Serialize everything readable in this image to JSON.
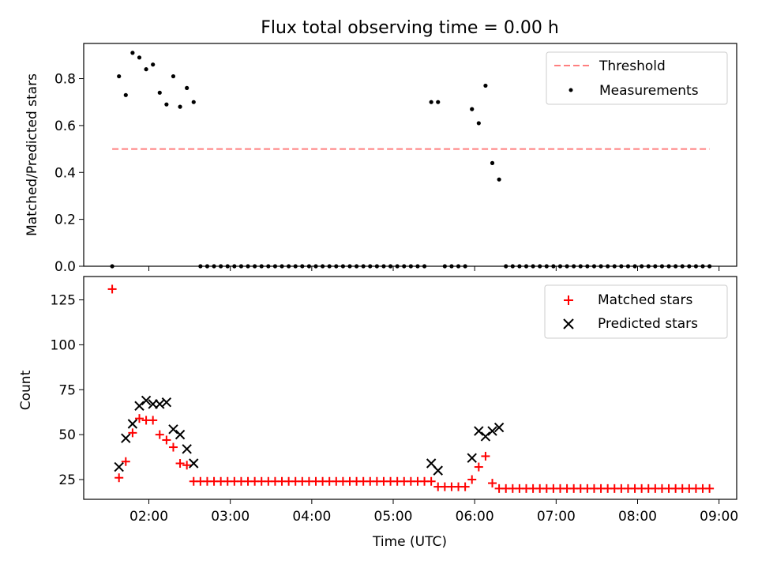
{
  "title": "Flux total observing time = 0.00 h",
  "xlabel": "Time (UTC)",
  "chart_data": [
    {
      "type": "scatter",
      "ylabel": "Matched/Predicted stars",
      "xlim": [
        "01:12",
        "09:13"
      ],
      "ylim": [
        0,
        0.95
      ],
      "yticks": [
        0.0,
        0.2,
        0.4,
        0.6,
        0.8
      ],
      "ytick_labels": [
        "0.0",
        "0.2",
        "0.4",
        "0.6",
        "0.8"
      ],
      "xticks": [
        "02:00",
        "03:00",
        "04:00",
        "05:00",
        "06:00",
        "07:00",
        "08:00",
        "09:00"
      ],
      "legend_position": "top-right",
      "threshold": {
        "name": "Threshold",
        "value": 0.5,
        "x_start": "01:33",
        "x_end": "08:53",
        "color": "#ff7f7f",
        "style": "dashed"
      },
      "series": [
        {
          "name": "Measurements",
          "color": "#000000",
          "points": [
            [
              "01:33",
              0.0
            ],
            [
              "01:38",
              0.81
            ],
            [
              "01:43",
              0.73
            ],
            [
              "01:48",
              0.91
            ],
            [
              "01:53",
              0.89
            ],
            [
              "01:58",
              0.84
            ],
            [
              "02:03",
              0.86
            ],
            [
              "02:08",
              0.74
            ],
            [
              "02:13",
              0.69
            ],
            [
              "02:18",
              0.81
            ],
            [
              "02:23",
              0.68
            ],
            [
              "02:28",
              0.76
            ],
            [
              "02:33",
              0.7
            ],
            [
              "02:38",
              0.0
            ],
            [
              "02:43",
              0.0
            ],
            [
              "02:48",
              0.0
            ],
            [
              "02:53",
              0.0
            ],
            [
              "02:58",
              0.0
            ],
            [
              "03:03",
              0.0
            ],
            [
              "03:08",
              0.0
            ],
            [
              "03:13",
              0.0
            ],
            [
              "03:18",
              0.0
            ],
            [
              "03:23",
              0.0
            ],
            [
              "03:28",
              0.0
            ],
            [
              "03:33",
              0.0
            ],
            [
              "03:38",
              0.0
            ],
            [
              "03:43",
              0.0
            ],
            [
              "03:48",
              0.0
            ],
            [
              "03:53",
              0.0
            ],
            [
              "03:58",
              0.0
            ],
            [
              "04:03",
              0.0
            ],
            [
              "04:08",
              0.0
            ],
            [
              "04:13",
              0.0
            ],
            [
              "04:18",
              0.0
            ],
            [
              "04:23",
              0.0
            ],
            [
              "04:28",
              0.0
            ],
            [
              "04:33",
              0.0
            ],
            [
              "04:38",
              0.0
            ],
            [
              "04:43",
              0.0
            ],
            [
              "04:48",
              0.0
            ],
            [
              "04:53",
              0.0
            ],
            [
              "04:58",
              0.0
            ],
            [
              "05:03",
              0.0
            ],
            [
              "05:08",
              0.0
            ],
            [
              "05:13",
              0.0
            ],
            [
              "05:18",
              0.0
            ],
            [
              "05:23",
              0.0
            ],
            [
              "05:28",
              0.7
            ],
            [
              "05:33",
              0.7
            ],
            [
              "05:38",
              0.0
            ],
            [
              "05:43",
              0.0
            ],
            [
              "05:48",
              0.0
            ],
            [
              "05:53",
              0.0
            ],
            [
              "05:58",
              0.67
            ],
            [
              "06:03",
              0.61
            ],
            [
              "06:08",
              0.77
            ],
            [
              "06:13",
              0.44
            ],
            [
              "06:18",
              0.37
            ],
            [
              "06:23",
              0.0
            ],
            [
              "06:28",
              0.0
            ],
            [
              "06:33",
              0.0
            ],
            [
              "06:38",
              0.0
            ],
            [
              "06:43",
              0.0
            ],
            [
              "06:48",
              0.0
            ],
            [
              "06:53",
              0.0
            ],
            [
              "06:58",
              0.0
            ],
            [
              "07:03",
              0.0
            ],
            [
              "07:08",
              0.0
            ],
            [
              "07:13",
              0.0
            ],
            [
              "07:18",
              0.0
            ],
            [
              "07:23",
              0.0
            ],
            [
              "07:28",
              0.0
            ],
            [
              "07:33",
              0.0
            ],
            [
              "07:38",
              0.0
            ],
            [
              "07:43",
              0.0
            ],
            [
              "07:48",
              0.0
            ],
            [
              "07:53",
              0.0
            ],
            [
              "07:58",
              0.0
            ],
            [
              "08:03",
              0.0
            ],
            [
              "08:08",
              0.0
            ],
            [
              "08:13",
              0.0
            ],
            [
              "08:18",
              0.0
            ],
            [
              "08:23",
              0.0
            ],
            [
              "08:28",
              0.0
            ],
            [
              "08:33",
              0.0
            ],
            [
              "08:38",
              0.0
            ],
            [
              "08:43",
              0.0
            ],
            [
              "08:48",
              0.0
            ],
            [
              "08:53",
              0.0
            ]
          ]
        }
      ]
    },
    {
      "type": "scatter",
      "ylabel": "Count",
      "xlim": [
        "01:12",
        "09:13"
      ],
      "ylim": [
        14,
        138
      ],
      "yticks": [
        25,
        50,
        75,
        100,
        125
      ],
      "ytick_labels": [
        "25",
        "50",
        "75",
        "100",
        "125"
      ],
      "xticks": [
        "02:00",
        "03:00",
        "04:00",
        "05:00",
        "06:00",
        "07:00",
        "08:00",
        "09:00"
      ],
      "xtick_labels": [
        "02:00",
        "03:00",
        "04:00",
        "05:00",
        "06:00",
        "07:00",
        "08:00",
        "09:00"
      ],
      "legend_position": "top-right",
      "series": [
        {
          "name": "Matched stars",
          "marker": "plus",
          "color": "#ff0000",
          "points": [
            [
              "01:33",
              131
            ],
            [
              "01:38",
              26
            ],
            [
              "01:43",
              35
            ],
            [
              "01:48",
              51
            ],
            [
              "01:53",
              59
            ],
            [
              "01:58",
              58
            ],
            [
              "02:03",
              58
            ],
            [
              "02:08",
              50
            ],
            [
              "02:13",
              47
            ],
            [
              "02:18",
              43
            ],
            [
              "02:23",
              34
            ],
            [
              "02:28",
              33
            ],
            [
              "02:33",
              24
            ],
            [
              "02:38",
              24
            ],
            [
              "02:43",
              24
            ],
            [
              "02:48",
              24
            ],
            [
              "02:53",
              24
            ],
            [
              "02:58",
              24
            ],
            [
              "03:03",
              24
            ],
            [
              "03:08",
              24
            ],
            [
              "03:13",
              24
            ],
            [
              "03:18",
              24
            ],
            [
              "03:23",
              24
            ],
            [
              "03:28",
              24
            ],
            [
              "03:33",
              24
            ],
            [
              "03:38",
              24
            ],
            [
              "03:43",
              24
            ],
            [
              "03:48",
              24
            ],
            [
              "03:53",
              24
            ],
            [
              "03:58",
              24
            ],
            [
              "04:03",
              24
            ],
            [
              "04:08",
              24
            ],
            [
              "04:13",
              24
            ],
            [
              "04:18",
              24
            ],
            [
              "04:23",
              24
            ],
            [
              "04:28",
              24
            ],
            [
              "04:33",
              24
            ],
            [
              "04:38",
              24
            ],
            [
              "04:43",
              24
            ],
            [
              "04:48",
              24
            ],
            [
              "04:53",
              24
            ],
            [
              "04:58",
              24
            ],
            [
              "05:03",
              24
            ],
            [
              "05:08",
              24
            ],
            [
              "05:13",
              24
            ],
            [
              "05:18",
              24
            ],
            [
              "05:23",
              24
            ],
            [
              "05:28",
              24
            ],
            [
              "05:33",
              21
            ],
            [
              "05:38",
              21
            ],
            [
              "05:43",
              21
            ],
            [
              "05:48",
              21
            ],
            [
              "05:53",
              21
            ],
            [
              "05:58",
              25
            ],
            [
              "06:03",
              32
            ],
            [
              "06:08",
              38
            ],
            [
              "06:13",
              23
            ],
            [
              "06:18",
              20
            ],
            [
              "06:23",
              20
            ],
            [
              "06:28",
              20
            ],
            [
              "06:33",
              20
            ],
            [
              "06:38",
              20
            ],
            [
              "06:43",
              20
            ],
            [
              "06:48",
              20
            ],
            [
              "06:53",
              20
            ],
            [
              "06:58",
              20
            ],
            [
              "07:03",
              20
            ],
            [
              "07:08",
              20
            ],
            [
              "07:13",
              20
            ],
            [
              "07:18",
              20
            ],
            [
              "07:23",
              20
            ],
            [
              "07:28",
              20
            ],
            [
              "07:33",
              20
            ],
            [
              "07:38",
              20
            ],
            [
              "07:43",
              20
            ],
            [
              "07:48",
              20
            ],
            [
              "07:53",
              20
            ],
            [
              "07:58",
              20
            ],
            [
              "08:03",
              20
            ],
            [
              "08:08",
              20
            ],
            [
              "08:13",
              20
            ],
            [
              "08:18",
              20
            ],
            [
              "08:23",
              20
            ],
            [
              "08:28",
              20
            ],
            [
              "08:33",
              20
            ],
            [
              "08:38",
              20
            ],
            [
              "08:43",
              20
            ],
            [
              "08:48",
              20
            ],
            [
              "08:53",
              20
            ]
          ]
        },
        {
          "name": "Predicted stars",
          "marker": "x",
          "color": "#000000",
          "points": [
            [
              "01:38",
              32
            ],
            [
              "01:43",
              48
            ],
            [
              "01:48",
              56
            ],
            [
              "01:53",
              66
            ],
            [
              "01:58",
              69
            ],
            [
              "02:03",
              67
            ],
            [
              "02:08",
              67
            ],
            [
              "02:13",
              68
            ],
            [
              "02:18",
              53
            ],
            [
              "02:23",
              50
            ],
            [
              "02:28",
              42
            ],
            [
              "02:33",
              34
            ],
            [
              "05:28",
              34
            ],
            [
              "05:33",
              30
            ],
            [
              "05:58",
              37
            ],
            [
              "06:03",
              52
            ],
            [
              "06:08",
              49
            ],
            [
              "06:13",
              52
            ],
            [
              "06:18",
              54
            ]
          ]
        }
      ]
    }
  ]
}
